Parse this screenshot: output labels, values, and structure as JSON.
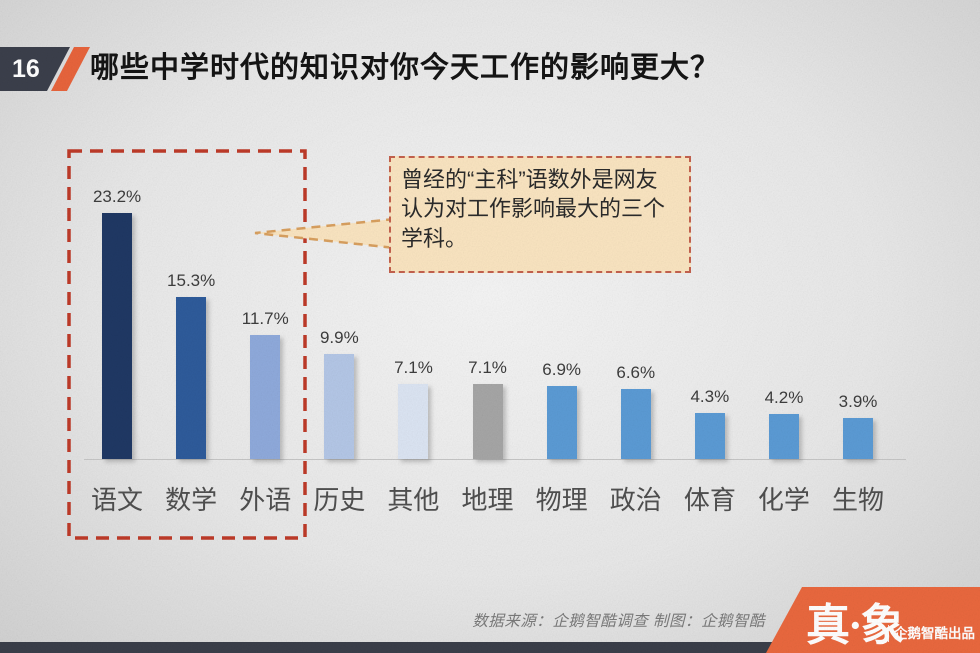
{
  "slide": {
    "number": "16",
    "title": "哪些中学时代的知识对你今天工作的影响更大？"
  },
  "chart_data": {
    "type": "bar",
    "title": "哪些中学时代的知识对你今天工作的影响更大？",
    "categories": [
      "语文",
      "数学",
      "外语",
      "历史",
      "其他",
      "地理",
      "物理",
      "政治",
      "体育",
      "化学",
      "生物"
    ],
    "values": [
      23.2,
      15.3,
      11.7,
      9.9,
      7.1,
      7.1,
      6.9,
      6.6,
      4.3,
      4.2,
      3.9
    ],
    "value_labels": [
      "23.2%",
      "15.3%",
      "11.7%",
      "9.9%",
      "7.1%",
      "7.1%",
      "6.9%",
      "6.6%",
      "4.3%",
      "4.2%",
      "3.9%"
    ],
    "bar_colors": [
      "#1f3864",
      "#2e5b9b",
      "#8faadc",
      "#b4c7e7",
      "#dce5f3",
      "#a6a6a6",
      "#5b9bd5",
      "#5b9bd5",
      "#5b9bd5",
      "#5b9bd5",
      "#5b9bd5"
    ],
    "xlabel": "",
    "ylabel": "",
    "ylim": [
      0,
      25
    ],
    "grid": false,
    "legend": "none",
    "highlighted_categories": [
      "语文",
      "数学",
      "外语"
    ]
  },
  "callout": {
    "text": "曾经的“主科”语数外是网友认为对工作影响最大的三个学科。"
  },
  "footer": {
    "credits": "数据来源：企鹅智酷调查  制图：企鹅智酷",
    "logo_main": "真·象",
    "logo_sub": "企鹅智酷出品"
  },
  "colors": {
    "accent_orange": "#e8643c",
    "badge_dark": "#3b3f4b",
    "highlight_red": "#be3a28",
    "callout_bg": "#fae5c1",
    "callout_border": "#c4614e",
    "pointer_stroke": "#d9a05f",
    "main_blue": "#5b9bd5",
    "bottom_bar": "#3a3e49",
    "logo_bg": "#ea683e"
  }
}
